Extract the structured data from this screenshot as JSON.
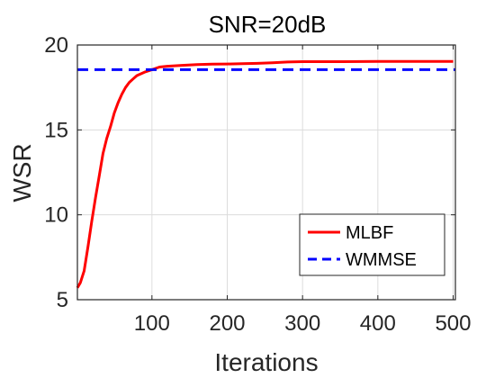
{
  "chart_data": {
    "type": "line",
    "title": "SNR=20dB",
    "xlabel": "Iterations",
    "ylabel": "WSR",
    "xlim": [
      1,
      503
    ],
    "ylim": [
      5,
      20
    ],
    "x_ticks": [
      100,
      200,
      300,
      400,
      500
    ],
    "y_ticks": [
      5,
      10,
      15,
      20
    ],
    "grid": true,
    "legend_position": "bottom-right",
    "series": [
      {
        "name": "MLBF",
        "color": "#ff0000",
        "style": "solid",
        "x": [
          1,
          5,
          10,
          15,
          20,
          25,
          30,
          35,
          40,
          45,
          50,
          55,
          60,
          65,
          70,
          75,
          80,
          90,
          100,
          110,
          120,
          140,
          160,
          180,
          200,
          220,
          240,
          260,
          280,
          300,
          350,
          400,
          450,
          500
        ],
        "y": [
          5.7,
          6.0,
          6.7,
          8.1,
          9.6,
          11.0,
          12.3,
          13.6,
          14.5,
          15.2,
          16.0,
          16.6,
          17.1,
          17.5,
          17.8,
          18.0,
          18.2,
          18.4,
          18.55,
          18.7,
          18.75,
          18.8,
          18.85,
          18.87,
          18.88,
          18.9,
          18.92,
          18.95,
          19.0,
          19.02,
          19.02,
          19.03,
          19.03,
          19.03
        ]
      },
      {
        "name": "WMMSE",
        "color": "#0000ff",
        "style": "dashed",
        "x": [
          1,
          503
        ],
        "y": [
          18.55,
          18.55
        ]
      }
    ]
  }
}
